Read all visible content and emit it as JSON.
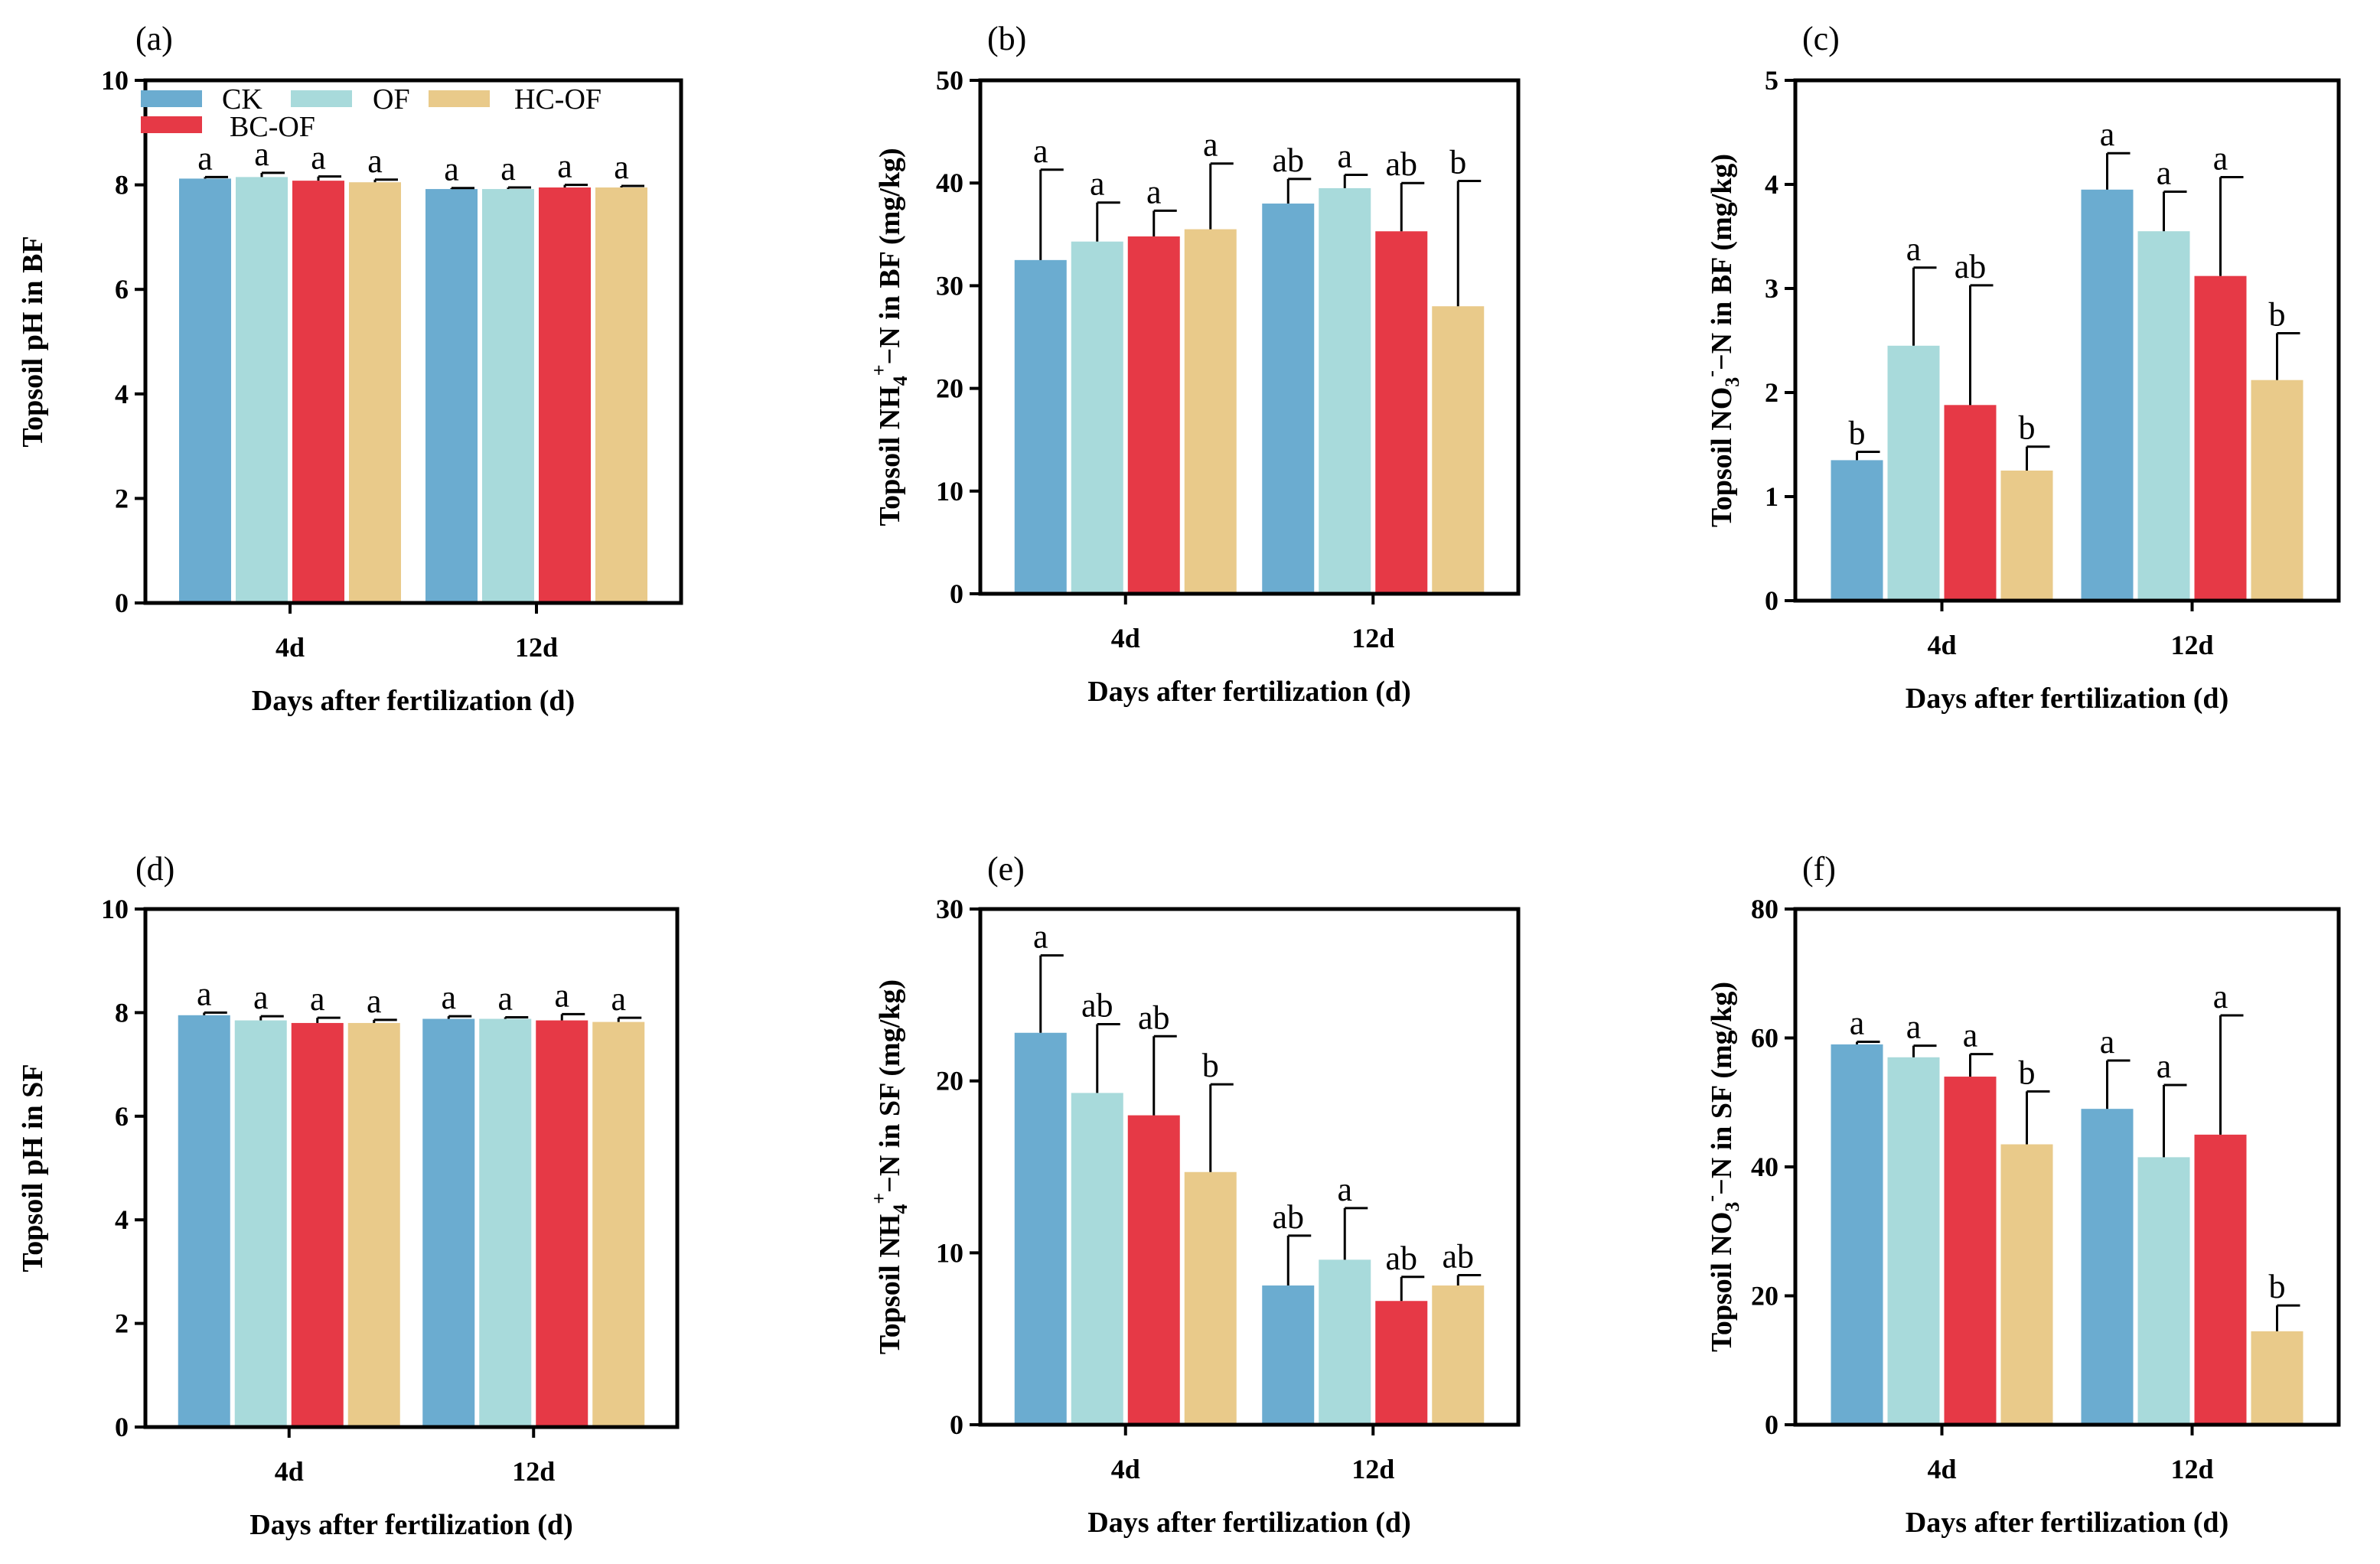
{
  "colors": {
    "CK": "#6bacd0",
    "OF": "#a8dadb",
    "BC-OF": "#e63946",
    "HC-OF": "#e9ca8a"
  },
  "legend": [
    "CK",
    "OF",
    "BC-OF",
    "HC-OF"
  ],
  "chart_data": [
    {
      "id": "a",
      "panel_label": "(a)",
      "type": "bar",
      "title": "",
      "xlabel": "Days after fertilization (d)",
      "ylabel": "Topsoil pH in BF",
      "ylim": [
        0,
        10
      ],
      "yticks": [
        "0",
        "2",
        "4",
        "6",
        "8",
        "10"
      ],
      "categories": [
        "4d",
        "12d"
      ],
      "series": [
        {
          "name": "CK",
          "values": [
            8.12,
            7.92
          ],
          "errors": [
            0.03,
            0.02
          ],
          "letters": [
            "a",
            "a"
          ]
        },
        {
          "name": "OF",
          "values": [
            8.15,
            7.92
          ],
          "errors": [
            0.08,
            0.03
          ],
          "letters": [
            "a",
            "a"
          ]
        },
        {
          "name": "BC-OF",
          "values": [
            8.08,
            7.95
          ],
          "errors": [
            0.08,
            0.05
          ],
          "letters": [
            "a",
            "a"
          ]
        },
        {
          "name": "HC-OF",
          "values": [
            8.05,
            7.95
          ],
          "errors": [
            0.05,
            0.03
          ],
          "letters": [
            "a",
            "a"
          ]
        }
      ]
    },
    {
      "id": "b",
      "panel_label": "(b)",
      "type": "bar",
      "title": "",
      "xlabel": "Days after fertilization (d)",
      "ylabel": "Topsoil NH4+−N in BF (mg/kg)",
      "ylabel_parts": [
        "Topsoil NH",
        "4",
        "+",
        "−N in BF (mg/kg)"
      ],
      "ylim": [
        0,
        50
      ],
      "yticks": [
        "0",
        "10",
        "20",
        "30",
        "40",
        "50"
      ],
      "categories": [
        "4d",
        "12d"
      ],
      "series": [
        {
          "name": "CK",
          "values": [
            32.5,
            38.0
          ],
          "errors": [
            8.8,
            2.4
          ],
          "letters": [
            "a",
            "ab"
          ]
        },
        {
          "name": "OF",
          "values": [
            34.3,
            39.5
          ],
          "errors": [
            3.8,
            1.3
          ],
          "letters": [
            "a",
            "a"
          ]
        },
        {
          "name": "BC-OF",
          "values": [
            34.8,
            35.3
          ],
          "errors": [
            2.5,
            4.7
          ],
          "letters": [
            "a",
            "ab"
          ]
        },
        {
          "name": "HC-OF",
          "values": [
            35.5,
            28.0
          ],
          "errors": [
            6.4,
            12.2
          ],
          "letters": [
            "a",
            "b"
          ]
        }
      ]
    },
    {
      "id": "c",
      "panel_label": "(c)",
      "type": "bar",
      "title": "",
      "xlabel": "Days after fertilization (d)",
      "ylabel": "Topsoil NO3-−N in BF (mg/kg)",
      "ylabel_parts": [
        "Topsoil  NO",
        "3",
        "-",
        "−N in BF (mg/kg)"
      ],
      "ylim": [
        0,
        5
      ],
      "yticks": [
        "0",
        "1",
        "2",
        "3",
        "4",
        "5"
      ],
      "categories": [
        "4d",
        "12d"
      ],
      "series": [
        {
          "name": "CK",
          "values": [
            1.35,
            3.95
          ],
          "errors": [
            0.08,
            0.35
          ],
          "letters": [
            "b",
            "a"
          ]
        },
        {
          "name": "OF",
          "values": [
            2.45,
            3.55
          ],
          "errors": [
            0.75,
            0.38
          ],
          "letters": [
            "a",
            "a"
          ]
        },
        {
          "name": "BC-OF",
          "values": [
            1.88,
            3.12
          ],
          "errors": [
            1.15,
            0.95
          ],
          "letters": [
            "ab",
            "a"
          ]
        },
        {
          "name": "HC-OF",
          "values": [
            1.25,
            2.12
          ],
          "errors": [
            0.23,
            0.45
          ],
          "letters": [
            "b",
            "b"
          ]
        }
      ]
    },
    {
      "id": "d",
      "panel_label": "(d)",
      "type": "bar",
      "title": "",
      "xlabel": "Days after fertilization (d)",
      "ylabel": "Topsoil pH in SF",
      "ylim": [
        0,
        10
      ],
      "yticks": [
        "0",
        "2",
        "4",
        "6",
        "8",
        "10"
      ],
      "categories": [
        "4d",
        "12d"
      ],
      "series": [
        {
          "name": "CK",
          "values": [
            7.95,
            7.88
          ],
          "errors": [
            0.05,
            0.05
          ],
          "letters": [
            "a",
            "a"
          ]
        },
        {
          "name": "OF",
          "values": [
            7.85,
            7.88
          ],
          "errors": [
            0.08,
            0.03
          ],
          "letters": [
            "a",
            "a"
          ]
        },
        {
          "name": "BC-OF",
          "values": [
            7.8,
            7.85
          ],
          "errors": [
            0.1,
            0.12
          ],
          "letters": [
            "a",
            "a"
          ]
        },
        {
          "name": "HC-OF",
          "values": [
            7.8,
            7.82
          ],
          "errors": [
            0.06,
            0.08
          ],
          "letters": [
            "a",
            "a"
          ]
        }
      ]
    },
    {
      "id": "e",
      "panel_label": "(e)",
      "type": "bar",
      "title": "",
      "xlabel": "Days after fertilization (d)",
      "ylabel": "Topsoil NH4+−N in SF (mg/kg)",
      "ylabel_parts": [
        "Topsoil NH",
        "4",
        "+",
        "−N in SF (mg/kg)"
      ],
      "ylim": [
        0,
        30
      ],
      "yticks": [
        "0",
        "10",
        "20",
        "30"
      ],
      "categories": [
        "4d",
        "12d"
      ],
      "series": [
        {
          "name": "CK",
          "values": [
            22.8,
            8.1
          ],
          "errors": [
            4.5,
            2.9
          ],
          "letters": [
            "a",
            "ab"
          ]
        },
        {
          "name": "OF",
          "values": [
            19.3,
            9.6
          ],
          "errors": [
            4.0,
            3.0
          ],
          "letters": [
            "ab",
            "a"
          ]
        },
        {
          "name": "BC-OF",
          "values": [
            18.0,
            7.2
          ],
          "errors": [
            4.6,
            1.4
          ],
          "letters": [
            "ab",
            "ab"
          ]
        },
        {
          "name": "HC-OF",
          "values": [
            14.7,
            8.1
          ],
          "errors": [
            5.1,
            0.6
          ],
          "letters": [
            "b",
            "ab"
          ]
        }
      ]
    },
    {
      "id": "f",
      "panel_label": "(f)",
      "type": "bar",
      "title": "",
      "xlabel": "Days after fertilization (d)",
      "ylabel": "Topsoil NO3-−N in SF (mg/kg)",
      "ylabel_parts": [
        "Topsoil  NO",
        "3",
        "-",
        "−N in SF (mg/kg)"
      ],
      "ylim": [
        0,
        80
      ],
      "yticks": [
        "0",
        "20",
        "40",
        "60",
        "80"
      ],
      "categories": [
        "4d",
        "12d"
      ],
      "series": [
        {
          "name": "CK",
          "values": [
            59.0,
            49.0
          ],
          "errors": [
            0.4,
            7.5
          ],
          "letters": [
            "a",
            "a"
          ]
        },
        {
          "name": "OF",
          "values": [
            57.0,
            41.5
          ],
          "errors": [
            1.8,
            11.2
          ],
          "letters": [
            "a",
            "a"
          ]
        },
        {
          "name": "BC-OF",
          "values": [
            54.0,
            45.0
          ],
          "errors": [
            3.5,
            18.5
          ],
          "letters": [
            "a",
            "a"
          ]
        },
        {
          "name": "HC-OF",
          "values": [
            43.5,
            14.5
          ],
          "errors": [
            8.2,
            4.0
          ],
          "letters": [
            "b",
            "b"
          ]
        }
      ]
    }
  ]
}
